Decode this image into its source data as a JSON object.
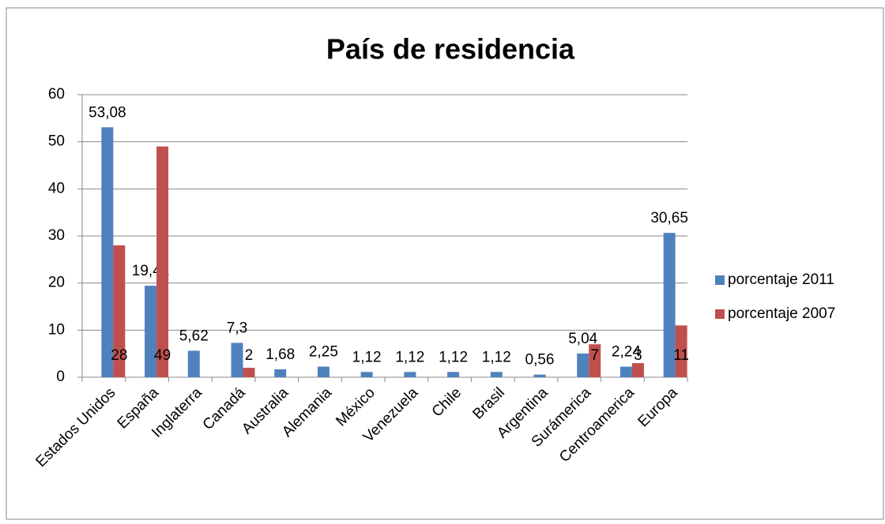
{
  "chart_data": {
    "type": "bar",
    "title": "País de residencia",
    "categories": [
      "Estados Unidos",
      "España",
      "Inglaterra",
      "Canadá",
      "Australia",
      "Alemania",
      "México",
      "Venezuela",
      "Chile",
      "Brasil",
      "Argentina",
      "Surámerica",
      "Centroamerica",
      "Europa"
    ],
    "series": [
      {
        "name": "porcentaje 2011",
        "color": "#4f81bd",
        "values": [
          53.08,
          19.42,
          5.62,
          7.3,
          1.68,
          2.25,
          1.12,
          1.12,
          1.12,
          1.12,
          0.56,
          5.04,
          2.24,
          30.65
        ],
        "value_labels": [
          "53,08",
          "19,42",
          "5,62",
          "7,3",
          "1,68",
          "2,25",
          "1,12",
          "1,12",
          "1,12",
          "1,12",
          "0,56",
          "5,04",
          "2,24",
          "30,65"
        ]
      },
      {
        "name": "porcentaje 2007",
        "color": "#c0504d",
        "values": [
          28,
          49,
          null,
          2,
          null,
          null,
          null,
          null,
          null,
          null,
          null,
          7,
          3,
          11
        ]
      }
    ],
    "ylim": [
      0,
      60
    ],
    "yticks": [
      0,
      10,
      20,
      30,
      40,
      50,
      60
    ],
    "grid": true,
    "legend": "right"
  }
}
